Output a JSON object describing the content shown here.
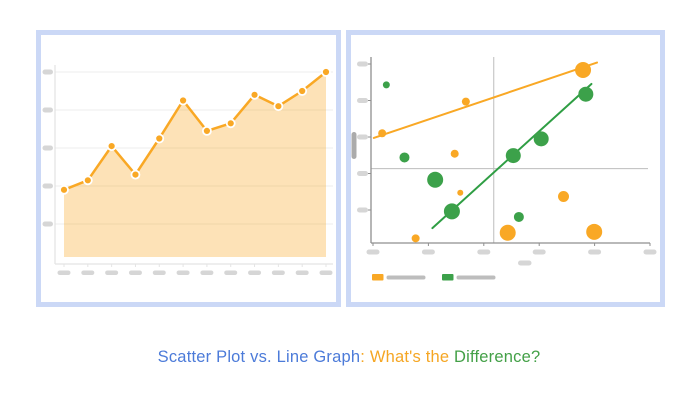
{
  "caption": {
    "part1": "Scatter Plot vs. Line Graph",
    "part2": ": What's the ",
    "part3": "Difference?"
  },
  "colors": {
    "accent_orange": "#f9a825",
    "accent_green": "#3ca14a",
    "green_line": "#2f9e44",
    "area_fill": "rgba(249,168,37,0.33)",
    "panel_border": "#cbd8f6",
    "gridline": "#f0f0f0",
    "axis_light": "#e4e4e4",
    "axis_dark": "#8f8f8f",
    "quadrant_line": "#bdbdbd",
    "placeholder_pill": "#d6d6d6",
    "placeholder_bar": "#bdbdbd",
    "axis_title_bar": "#ababab",
    "caption_blue": "#4c7bd9",
    "caption_orange": "#f5a623",
    "caption_green": "#43a047"
  },
  "chart_data": [
    {
      "type": "area",
      "title": "",
      "xlabel": "",
      "ylabel": "",
      "x": [
        1,
        2,
        3,
        4,
        5,
        6,
        7,
        8,
        9,
        10,
        11,
        12
      ],
      "values": [
        1.9,
        2.15,
        3.05,
        2.3,
        3.25,
        4.25,
        3.45,
        3.65,
        4.4,
        4.1,
        4.5,
        5.0
      ],
      "ylim": [
        0,
        5.5
      ],
      "gridlines": [
        1,
        2,
        3,
        4,
        5
      ],
      "grid": "horizontal-only",
      "tick_labels": "blank-placeholder-bars",
      "x_tick_count": 12,
      "y_tick_count": 5,
      "marker": "circle-white-ring",
      "legend_position": "none"
    },
    {
      "type": "scatter",
      "title": "",
      "xlabel": "",
      "ylabel": "",
      "xlim": [
        0,
        10
      ],
      "ylim": [
        0,
        10
      ],
      "grid": "off",
      "quadrant_lines": {
        "x": 4.4,
        "y": 4.0
      },
      "tick_labels": "blank-placeholder-bars",
      "x_tick_count": 6,
      "y_tick_count": 5,
      "legend_position": "bottom-left",
      "legend": [
        {
          "name": "orange-series",
          "label": "blank-placeholder-bar"
        },
        {
          "name": "green-series",
          "label": "blank-placeholder-bar"
        }
      ],
      "series": [
        {
          "name": "orange-series",
          "color_key": "accent_orange",
          "trend": {
            "x1": 0.1,
            "y1": 5.65,
            "x2": 8.1,
            "y2": 9.7
          },
          "points": [
            {
              "x": 0.4,
              "y": 5.9,
              "r": 4
            },
            {
              "x": 3.4,
              "y": 7.6,
              "r": 4
            },
            {
              "x": 7.6,
              "y": 9.3,
              "r": 8
            },
            {
              "x": 3.0,
              "y": 4.8,
              "r": 4
            },
            {
              "x": 3.2,
              "y": 2.7,
              "r": 3
            },
            {
              "x": 1.6,
              "y": 0.25,
              "r": 4
            },
            {
              "x": 4.9,
              "y": 0.55,
              "r": 8
            },
            {
              "x": 6.9,
              "y": 2.5,
              "r": 5.5
            },
            {
              "x": 8.0,
              "y": 0.6,
              "r": 8
            }
          ]
        },
        {
          "name": "green-series",
          "color_key": "accent_green",
          "trend": {
            "x1": 2.2,
            "y1": 0.8,
            "x2": 7.9,
            "y2": 8.55
          },
          "points": [
            {
              "x": 0.55,
              "y": 8.5,
              "r": 3.5
            },
            {
              "x": 1.2,
              "y": 4.6,
              "r": 5
            },
            {
              "x": 2.3,
              "y": 3.4,
              "r": 8
            },
            {
              "x": 2.9,
              "y": 1.7,
              "r": 8
            },
            {
              "x": 5.1,
              "y": 4.7,
              "r": 7.5
            },
            {
              "x": 6.1,
              "y": 5.6,
              "r": 7.5
            },
            {
              "x": 7.7,
              "y": 8.0,
              "r": 7.5
            },
            {
              "x": 5.3,
              "y": 1.4,
              "r": 5
            }
          ]
        }
      ]
    }
  ]
}
